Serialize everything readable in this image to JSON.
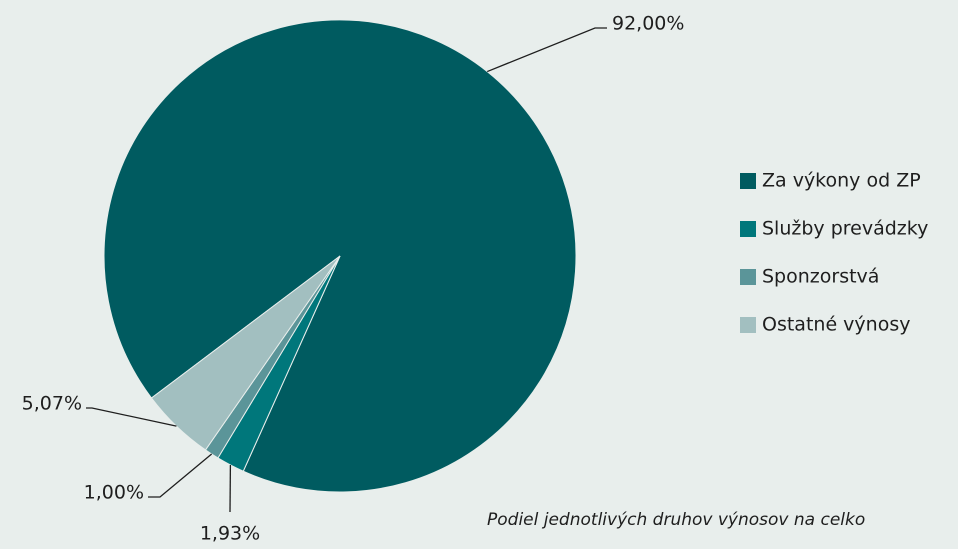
{
  "chart_data": {
    "type": "pie",
    "categories": [
      "Za výkony od ZP",
      "Služby prevádzky",
      "Sponzorstvá",
      "Ostatné výnosy"
    ],
    "values": [
      92.0,
      1.93,
      1.0,
      5.07
    ],
    "value_labels": [
      "92,00%",
      "1,93%",
      "1,00%",
      "5,07%"
    ],
    "colors": [
      "#005b60",
      "#00777b",
      "#5b9599",
      "#a2bfc0"
    ],
    "caption": "Podiel jednotlivých druhov výnosov na celko",
    "legend": "right"
  }
}
